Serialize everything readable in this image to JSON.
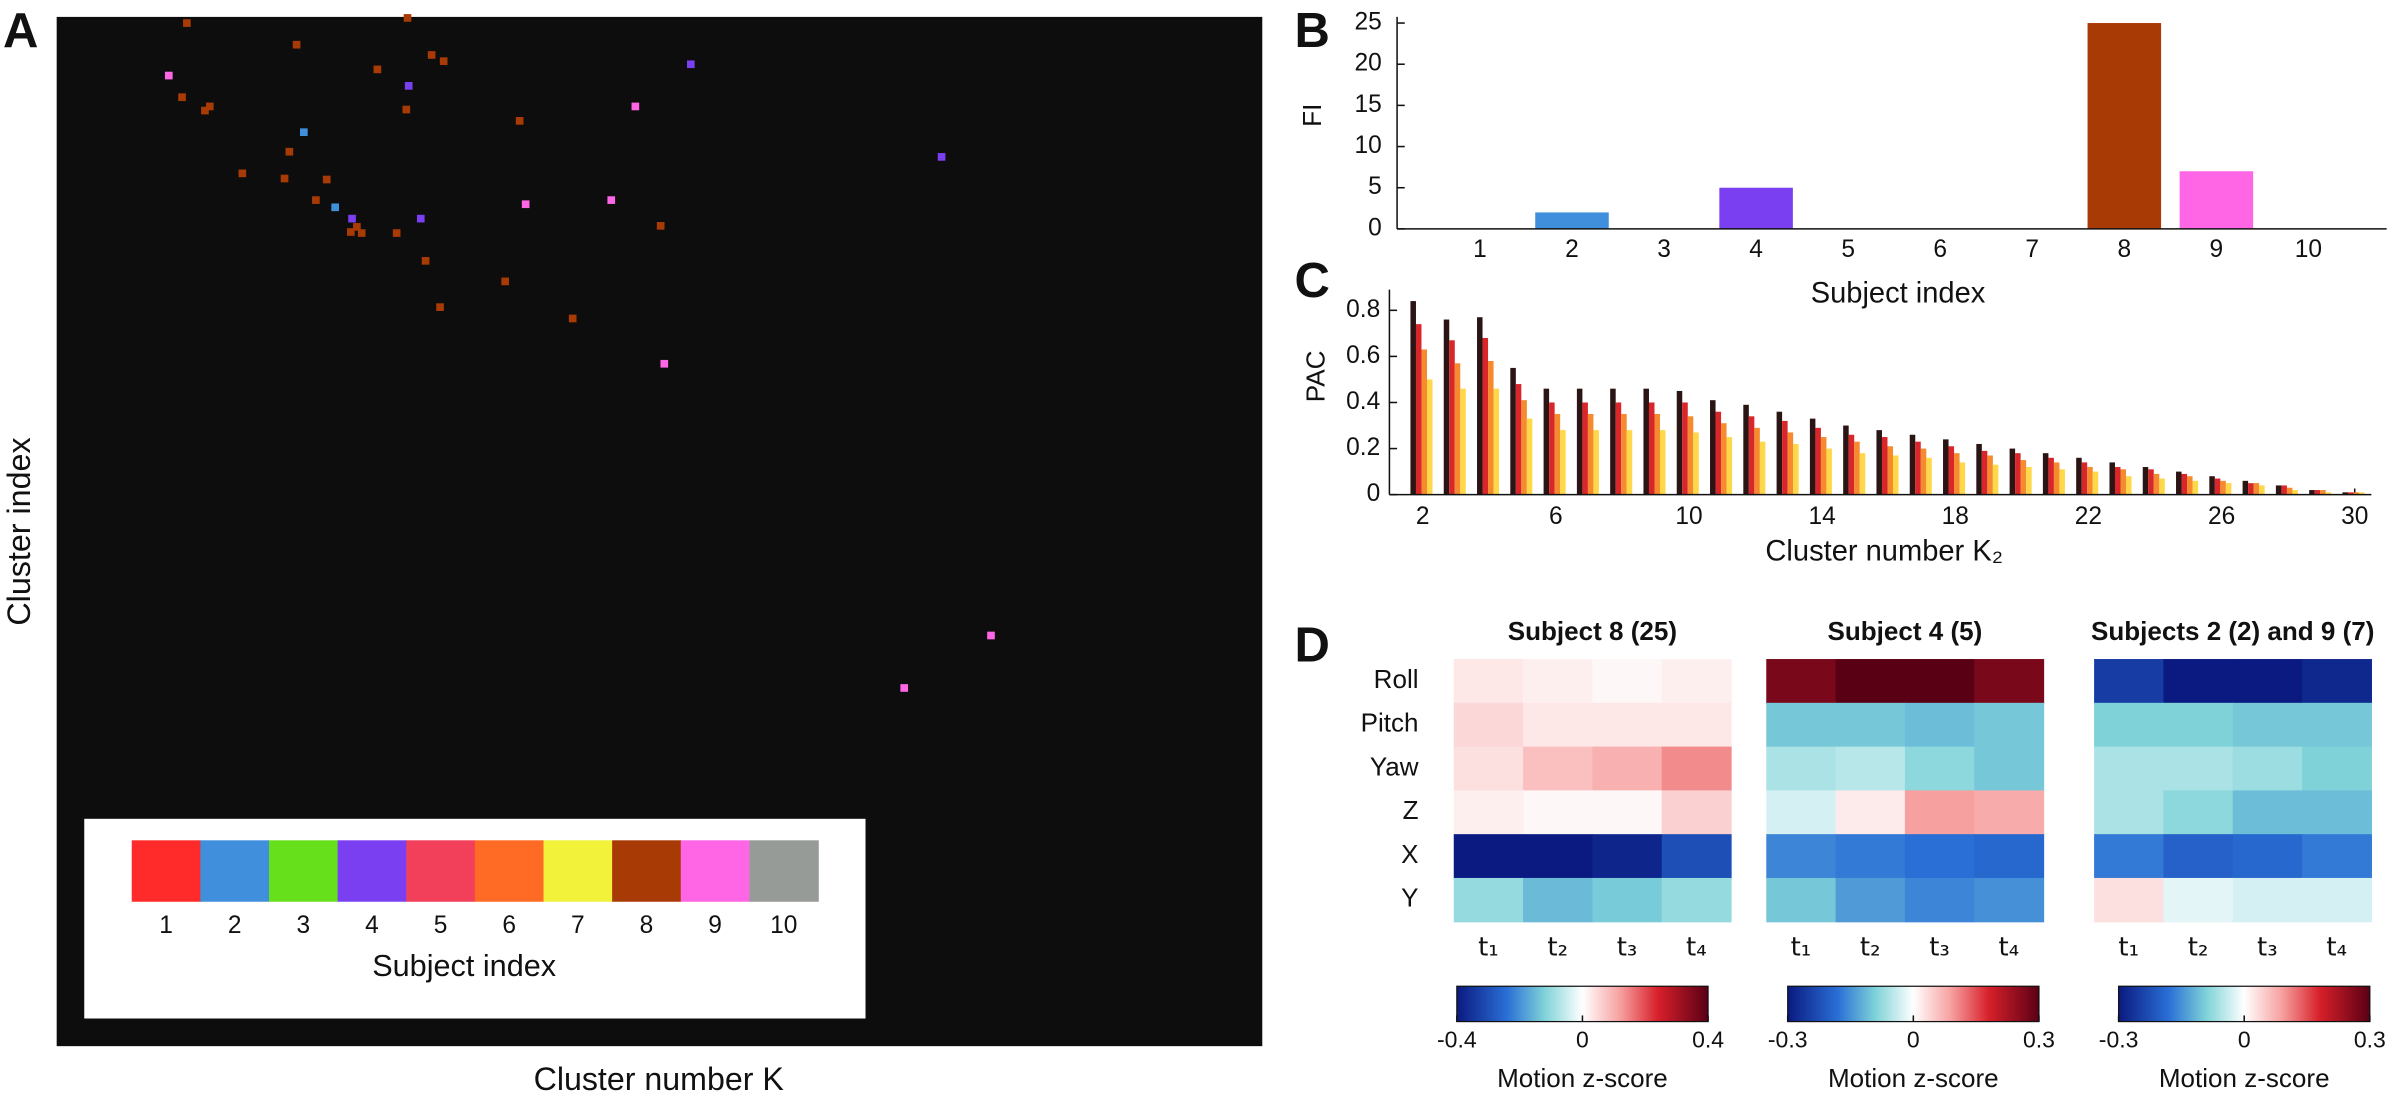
{
  "chart_data": [
    {
      "type": "scatter",
      "panel_label": "A",
      "xlabel": "Cluster number K",
      "ylabel": "Cluster index",
      "legend_title": "Subject index",
      "xlim": [
        0,
        1
      ],
      "ylim": [
        1,
        0
      ],
      "series": [
        {
          "name": "1",
          "color": "#ff2a2a",
          "x": [],
          "y": []
        },
        {
          "name": "2",
          "color": "#3f8fdd",
          "x": [
            0.205,
            0.231
          ],
          "y": [
            0.112,
            0.185
          ]
        },
        {
          "name": "3",
          "color": "#66e01a",
          "x": [],
          "y": []
        },
        {
          "name": "4",
          "color": "#7b3ff2",
          "x": [
            0.526,
            0.292,
            0.734,
            0.245,
            0.302
          ],
          "y": [
            0.046,
            0.067,
            0.136,
            0.196,
            0.196
          ]
        },
        {
          "name": "5",
          "color": "#f2405a",
          "x": [],
          "y": []
        },
        {
          "name": "6",
          "color": "#ff6a24",
          "x": [],
          "y": []
        },
        {
          "name": "7",
          "color": "#f2f23a",
          "x": [],
          "y": []
        },
        {
          "name": "8",
          "color": "#a83a05",
          "x": [
            0.108,
            0.291,
            0.199,
            0.266,
            0.311,
            0.321,
            0.104,
            0.127,
            0.123,
            0.29,
            0.384,
            0.193,
            0.154,
            0.189,
            0.224,
            0.215,
            0.249,
            0.244,
            0.253,
            0.282,
            0.306,
            0.372,
            0.318,
            0.428,
            0.501
          ],
          "y": [
            0.006,
            0.001,
            0.027,
            0.051,
            0.037,
            0.043,
            0.078,
            0.087,
            0.091,
            0.09,
            0.101,
            0.131,
            0.152,
            0.157,
            0.158,
            0.178,
            0.204,
            0.209,
            0.21,
            0.21,
            0.237,
            0.257,
            0.282,
            0.293,
            0.203
          ]
        },
        {
          "name": "9",
          "color": "#ff66e6",
          "x": [
            0.093,
            0.48,
            0.389,
            0.46,
            0.504,
            0.775,
            0.703
          ],
          "y": [
            0.057,
            0.087,
            0.182,
            0.178,
            0.337,
            0.601,
            0.652
          ]
        },
        {
          "name": "10",
          "color": "#969b98",
          "x": [],
          "y": []
        }
      ]
    },
    {
      "type": "bar",
      "panel_label": "B",
      "xlabel": "Subject index",
      "ylabel": "FI",
      "categories": [
        "1",
        "2",
        "3",
        "4",
        "5",
        "6",
        "7",
        "8",
        "9",
        "10"
      ],
      "values": [
        0,
        2,
        0,
        5,
        0,
        0,
        0,
        25,
        7,
        0
      ],
      "colors": [
        "#ff2a2a",
        "#3f8fdd",
        "#66e01a",
        "#7b3ff2",
        "#f2405a",
        "#ff6a24",
        "#f2f23a",
        "#a83a05",
        "#ff66e6",
        "#969b98"
      ],
      "ylim": [
        0,
        25
      ],
      "yticks": [
        0,
        5,
        10,
        15,
        20,
        25
      ]
    },
    {
      "type": "grouped-bar",
      "panel_label": "C",
      "xlabel": "Cluster number K₂",
      "ylabel": "PAC",
      "x": [
        2,
        3,
        4,
        5,
        6,
        7,
        8,
        9,
        10,
        11,
        12,
        13,
        14,
        15,
        16,
        17,
        18,
        19,
        20,
        21,
        22,
        23,
        24,
        25,
        26,
        27,
        28,
        29,
        30
      ],
      "xlim": [
        1,
        30.5
      ],
      "xticks": [
        2,
        6,
        10,
        14,
        18,
        22,
        26,
        30
      ],
      "ylim": [
        0,
        0.85
      ],
      "yticks": [
        0,
        0.2,
        0.4,
        0.6,
        0.8
      ],
      "series": [
        {
          "color": "#2a1414",
          "values": [
            0.84,
            0.76,
            0.77,
            0.55,
            0.46,
            0.46,
            0.46,
            0.46,
            0.45,
            0.41,
            0.39,
            0.36,
            0.33,
            0.3,
            0.28,
            0.26,
            0.24,
            0.22,
            0.2,
            0.18,
            0.16,
            0.14,
            0.12,
            0.1,
            0.08,
            0.06,
            0.04,
            0.02,
            0.01
          ]
        },
        {
          "color": "#d8262a",
          "values": [
            0.74,
            0.67,
            0.68,
            0.48,
            0.4,
            0.4,
            0.4,
            0.4,
            0.4,
            0.36,
            0.34,
            0.32,
            0.29,
            0.26,
            0.25,
            0.23,
            0.21,
            0.19,
            0.18,
            0.16,
            0.14,
            0.12,
            0.11,
            0.09,
            0.07,
            0.05,
            0.04,
            0.02,
            0.01
          ]
        },
        {
          "color": "#f58a2e",
          "values": [
            0.63,
            0.57,
            0.58,
            0.41,
            0.35,
            0.35,
            0.35,
            0.35,
            0.34,
            0.31,
            0.29,
            0.27,
            0.25,
            0.23,
            0.21,
            0.2,
            0.18,
            0.17,
            0.15,
            0.14,
            0.12,
            0.11,
            0.09,
            0.08,
            0.06,
            0.05,
            0.03,
            0.02,
            0.01
          ]
        },
        {
          "color": "#ffd84a",
          "values": [
            0.5,
            0.46,
            0.46,
            0.33,
            0.28,
            0.28,
            0.28,
            0.28,
            0.27,
            0.25,
            0.23,
            0.22,
            0.2,
            0.18,
            0.17,
            0.16,
            0.14,
            0.13,
            0.12,
            0.11,
            0.1,
            0.08,
            0.07,
            0.06,
            0.05,
            0.04,
            0.02,
            0.01,
            0.01
          ]
        }
      ]
    },
    {
      "type": "heatmap",
      "panel_label": "D",
      "title": "Subject 8 (25)",
      "rows": [
        "Roll",
        "Pitch",
        "Yaw",
        "Z",
        "X",
        "Y"
      ],
      "columns": [
        "t₁",
        "t₂",
        "t₃",
        "t₄"
      ],
      "values": [
        [
          0.03,
          0.02,
          0.01,
          0.02
        ],
        [
          0.05,
          0.03,
          0.03,
          0.03
        ],
        [
          0.04,
          0.08,
          0.1,
          0.14
        ],
        [
          0.02,
          0.01,
          0.01,
          0.06
        ],
        [
          -0.42,
          -0.45,
          -0.38,
          -0.3
        ],
        [
          -0.1,
          -0.15,
          -0.13,
          -0.1
        ]
      ],
      "clim": [
        -0.4,
        0.4
      ],
      "colorbar_ticks": [
        -0.4,
        0,
        0.4
      ],
      "colorbar_label": "Motion z-score"
    },
    {
      "type": "heatmap",
      "title": "Subject 4 (5)",
      "columns": [
        "t₁",
        "t₂",
        "t₃",
        "t₄"
      ],
      "values": [
        [
          0.27,
          0.36,
          0.33,
          0.27
        ],
        [
          -0.1,
          -0.1,
          -0.11,
          -0.1
        ],
        [
          -0.06,
          -0.05,
          -0.08,
          -0.1
        ],
        [
          -0.03,
          0.02,
          0.09,
          0.08
        ],
        [
          -0.16,
          -0.17,
          -0.18,
          -0.19
        ],
        [
          -0.1,
          -0.14,
          -0.16,
          -0.15
        ]
      ],
      "clim": [
        -0.3,
        0.3
      ],
      "colorbar_ticks": [
        -0.3,
        0,
        0.3
      ],
      "colorbar_label": "Motion z-score"
    },
    {
      "type": "heatmap",
      "title": "Subjects 2 (2) and 9 (7)",
      "columns": [
        "t₁",
        "t₂",
        "t₃",
        "t₄"
      ],
      "values": [
        [
          -0.25,
          -0.32,
          -0.3,
          -0.28
        ],
        [
          -0.09,
          -0.09,
          -0.1,
          -0.1
        ],
        [
          -0.06,
          -0.06,
          -0.07,
          -0.09
        ],
        [
          -0.06,
          -0.08,
          -0.11,
          -0.11
        ],
        [
          -0.17,
          -0.2,
          -0.19,
          -0.17
        ],
        [
          0.03,
          -0.02,
          -0.03,
          -0.03
        ]
      ],
      "clim": [
        -0.3,
        0.3
      ],
      "colorbar_ticks": [
        -0.3,
        0,
        0.3
      ],
      "colorbar_label": "Motion z-score"
    }
  ]
}
